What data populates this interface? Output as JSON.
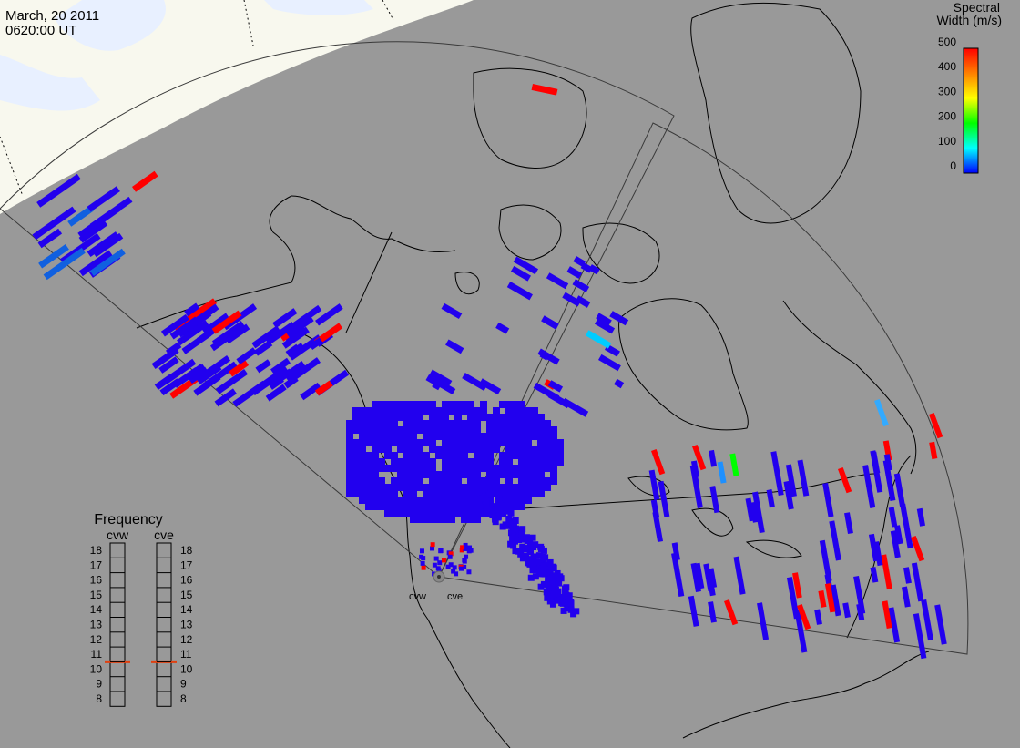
{
  "header": {
    "date": "March, 20 2011",
    "time": "0620:00 UT"
  },
  "colorbar": {
    "title_line1": "Spectral",
    "title_line2": "Width (m/s)",
    "ticks": [
      "500",
      "400",
      "300",
      "200",
      "100",
      "0"
    ],
    "stops": [
      "#ff0000",
      "#ff8000",
      "#ffff00",
      "#00ff00",
      "#00ffff",
      "#0000ff"
    ]
  },
  "frequency_panel": {
    "title": "Frequency",
    "radars": [
      {
        "code": "cvw",
        "selected": "11"
      },
      {
        "code": "cve",
        "selected": "11"
      }
    ],
    "levels": [
      "18",
      "17",
      "16",
      "15",
      "14",
      "13",
      "12",
      "11",
      "10",
      "9",
      "8"
    ]
  },
  "radar_sites": [
    {
      "code": "cvw"
    },
    {
      "code": "cve"
    }
  ],
  "colors": {
    "background": "#999999",
    "daylight": "#f8f8ee",
    "water": "#eef6ff",
    "echo_low": "#2200ee",
    "echo_high": "#ff0000",
    "echo_mid": "#00ff00",
    "echo_cyan": "#00ccff",
    "frequency_marker": "#e04010"
  }
}
